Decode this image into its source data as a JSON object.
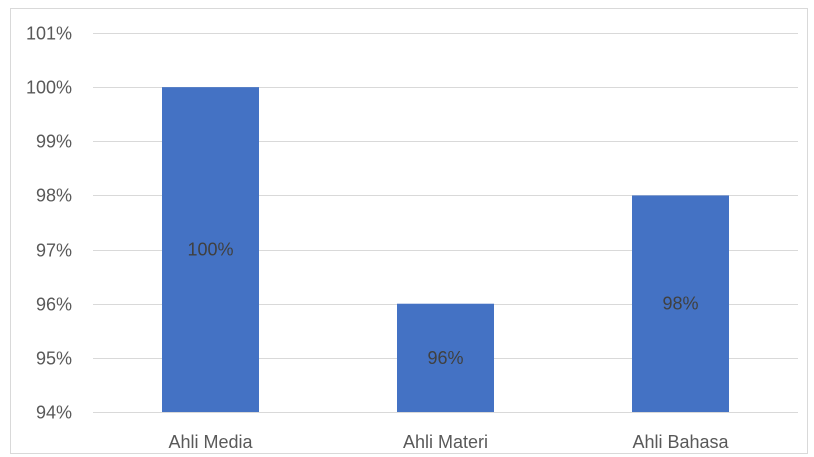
{
  "chart_data": {
    "type": "bar",
    "categories": [
      "Ahli Media",
      "Ahli Materi",
      "Ahli Bahasa"
    ],
    "values": [
      100,
      96,
      98
    ],
    "data_labels": [
      "100%",
      "96%",
      "98%"
    ],
    "ylim": [
      94,
      101
    ],
    "y_ticks": [
      94,
      95,
      96,
      97,
      98,
      99,
      100,
      101
    ],
    "y_tick_labels": [
      "94%",
      "95%",
      "96%",
      "97%",
      "98%",
      "99%",
      "100%",
      "101%"
    ],
    "grid": true,
    "legend": "none",
    "bar_color": "#4472c4",
    "grid_color": "#d9d9d9"
  }
}
